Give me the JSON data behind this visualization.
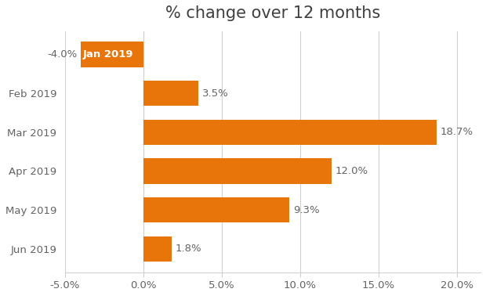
{
  "title": "% change over 12 months",
  "categories": [
    "Jan 2019",
    "Feb 2019",
    "Mar 2019",
    "Apr 2019",
    "May 2019",
    "Jun 2019"
  ],
  "values": [
    -4.0,
    3.5,
    18.7,
    12.0,
    9.3,
    1.8
  ],
  "bar_color": "#E8750A",
  "label_color": "#636363",
  "background_color": "#ffffff",
  "xlim": [
    -5.0,
    21.5
  ],
  "xticks": [
    -5.0,
    0.0,
    5.0,
    10.0,
    15.0,
    20.0
  ],
  "title_fontsize": 15,
  "label_fontsize": 9.5,
  "tick_fontsize": 9.5,
  "bar_height": 0.65
}
